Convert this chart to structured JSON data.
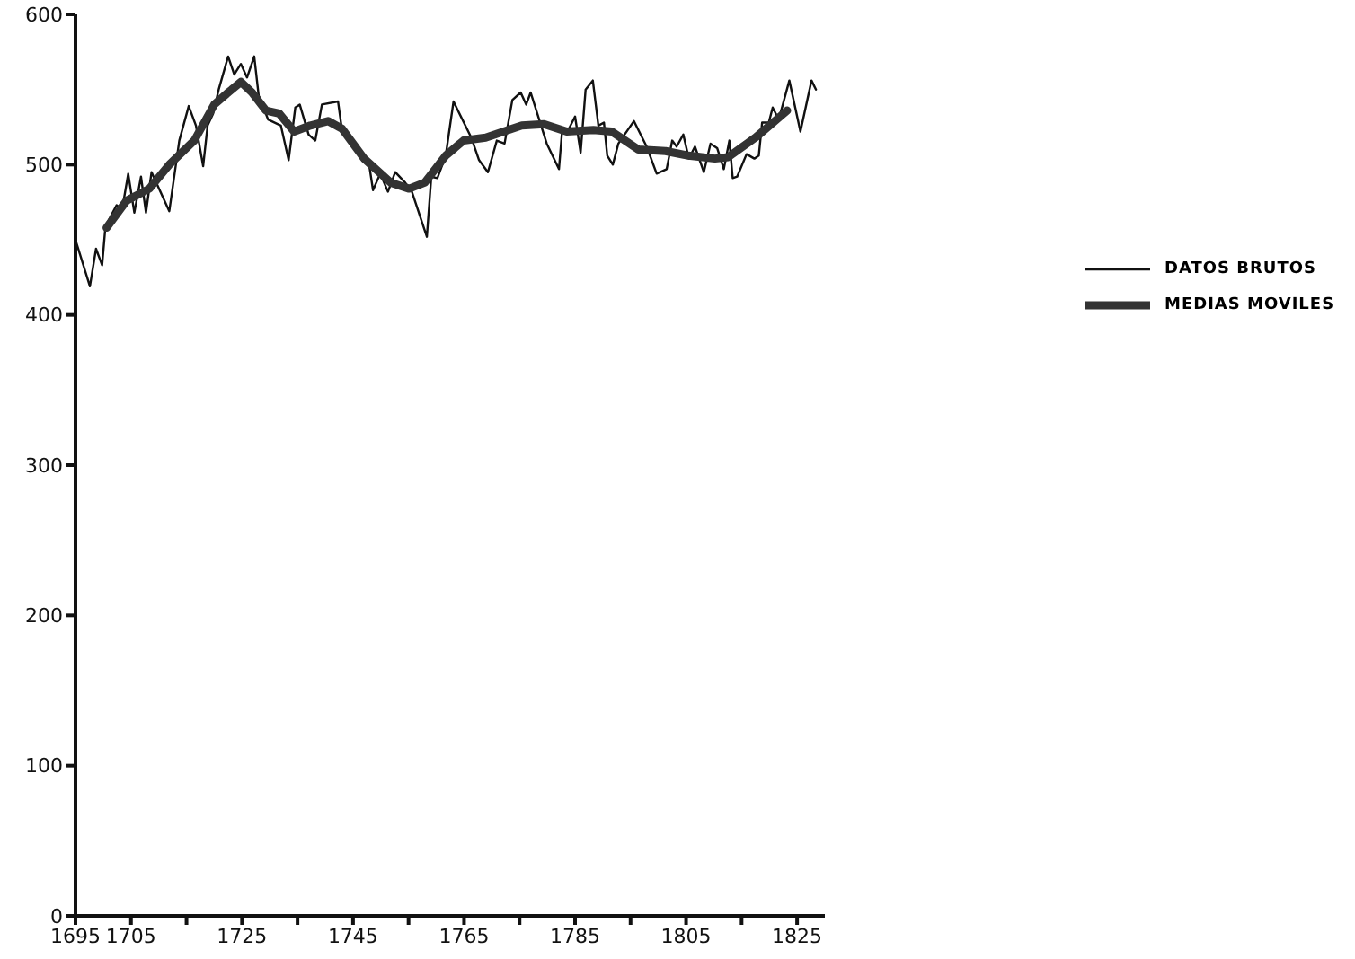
{
  "chart_data": {
    "type": "line",
    "xlim": [
      1695,
      1830
    ],
    "ylim": [
      0,
      600
    ],
    "xticks": [
      1695,
      1705,
      {
        "value": 1715,
        "label": null
      },
      1725,
      {
        "value": 1735,
        "label": null
      },
      1745,
      {
        "value": 1755,
        "label": null
      },
      1765,
      {
        "value": 1775,
        "label": null
      },
      1785,
      {
        "value": 1795,
        "label": null
      },
      1805,
      {
        "value": 1815,
        "label": null
      },
      1825
    ],
    "yticks": [
      0,
      100,
      200,
      300,
      400,
      500,
      600
    ],
    "legend": "right",
    "marker": "none",
    "line_style": "solid",
    "series": [
      {
        "name": "DATOS BRUTOS",
        "color": "#111111",
        "x": [
          1695,
          1697.6,
          1698.7,
          1699.8,
          1700.4,
          1702.4,
          1703.4,
          1704.5,
          1705.6,
          1706.8,
          1707.7,
          1708.7,
          1711.9,
          1713.7,
          1715.4,
          1716.7,
          1718,
          1718.8,
          1719.8,
          1720.8,
          1722.5,
          1723.6,
          1724.8,
          1725.9,
          1727.2,
          1728,
          1729.7,
          1732,
          1733.4,
          1734.6,
          1735.4,
          1737,
          1738.2,
          1739.4,
          1742.3,
          1742.9,
          1744.7,
          1747.9,
          1748.6,
          1749.9,
          1751.3,
          1752.6,
          1754.4,
          1755.6,
          1758.3,
          1759.1,
          1760.2,
          1761.7,
          1763.1,
          1766.3,
          1767.7,
          1769.3,
          1770.9,
          1772.3,
          1773.7,
          1775.2,
          1776.2,
          1777,
          1778.7,
          1779.9,
          1782.1,
          1782.7,
          1783.9,
          1785,
          1786,
          1786.9,
          1788.2,
          1789.2,
          1790.2,
          1790.8,
          1791.8,
          1792.8,
          1795.6,
          1797.9,
          1799.7,
          1801.5,
          1802.5,
          1803.3,
          1804.5,
          1805.5,
          1806.6,
          1808.2,
          1809.4,
          1810.6,
          1811.8,
          1812.8,
          1813.4,
          1814.2,
          1815.9,
          1817.3,
          1818.1,
          1818.7,
          1819.9,
          1820.6,
          1821.7,
          1823.6,
          1825.6,
          1827.6,
          1828.4
        ],
        "values": [
          450,
          419,
          444,
          433,
          459,
          473,
          470,
          494,
          468,
          492,
          468,
          495,
          469,
          516,
          539,
          526,
          499,
          526,
          534,
          550,
          572,
          560,
          567,
          558,
          572,
          546,
          530,
          526,
          503,
          538,
          540,
          520,
          516,
          540,
          542,
          526,
          518,
          500,
          483,
          494,
          482,
          495,
          488,
          482,
          452,
          492,
          491,
          506,
          542,
          518,
          503,
          495,
          516,
          514,
          543,
          548,
          540,
          548,
          528,
          514,
          497,
          524,
          524,
          532,
          508,
          550,
          556,
          526,
          528,
          506,
          500,
          514,
          529,
          512,
          494,
          497,
          516,
          512,
          520,
          504,
          512,
          495,
          514,
          511,
          497,
          516,
          491,
          492,
          507,
          504,
          506,
          528,
          528,
          538,
          530,
          556,
          522,
          556,
          550
        ]
      },
      {
        "name": "MEDIAS MOVILES",
        "color": "#333333",
        "x": [
          1700.6,
          1704.2,
          1708.3,
          1711.9,
          1716.4,
          1720,
          1722.5,
          1724.8,
          1726.8,
          1729.3,
          1731.7,
          1734.4,
          1737.3,
          1740.5,
          1743,
          1747,
          1751.8,
          1755.1,
          1757.9,
          1761.7,
          1764.9,
          1768.9,
          1773.7,
          1775.4,
          1779.4,
          1783.5,
          1788.3,
          1791.6,
          1796.4,
          1801.3,
          1805.4,
          1810.2,
          1812.6,
          1817.5,
          1823.2
        ],
        "values": [
          458,
          476,
          484,
          500,
          516,
          540,
          548,
          555,
          548,
          536,
          534,
          522,
          526,
          529,
          524,
          504,
          488,
          484,
          488,
          506,
          516,
          518,
          524,
          526,
          527,
          522,
          523,
          522,
          510,
          509,
          506,
          504,
          505,
          518,
          536
        ]
      }
    ]
  }
}
